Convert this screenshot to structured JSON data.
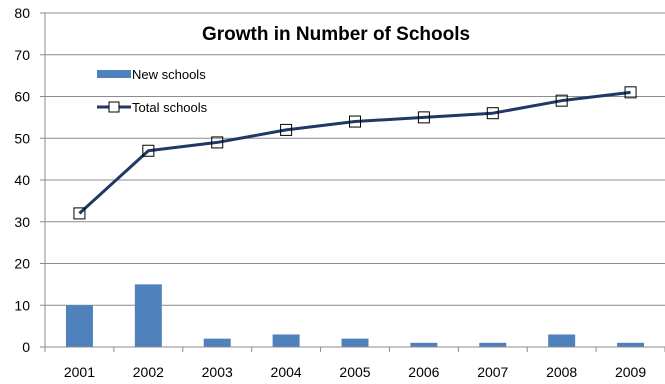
{
  "chart_data": {
    "type": "bar+line",
    "title": "Growth in Number of Schools",
    "categories": [
      "2001",
      "2002",
      "2003",
      "2004",
      "2005",
      "2006",
      "2007",
      "2008",
      "2009"
    ],
    "ylim": [
      0,
      80
    ],
    "yticks": [
      0,
      10,
      20,
      30,
      40,
      50,
      60,
      70,
      80
    ],
    "grid": true,
    "legend_position": "top-left",
    "series": [
      {
        "name": "New schools",
        "type": "bar",
        "values": [
          10,
          15,
          2,
          3,
          2,
          1,
          1,
          3,
          1
        ],
        "color": "#4f81bd"
      },
      {
        "name": "Total schools",
        "type": "line",
        "values": [
          32,
          47,
          49,
          52,
          54,
          55,
          56,
          59,
          61
        ],
        "color": "#1f3864",
        "marker": "open-square"
      }
    ]
  }
}
